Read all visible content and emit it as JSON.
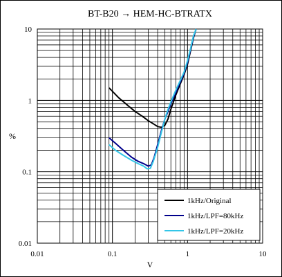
{
  "chart_data": {
    "type": "line",
    "title": "BT-B20 → HEM-HC-BTRATX",
    "xlabel": "V",
    "ylabel": "%",
    "x_scale": "log",
    "y_scale": "log",
    "xlim": [
      0.01,
      10
    ],
    "ylim": [
      0.01,
      10
    ],
    "x_ticks": [
      "0.01",
      "0.1",
      "1",
      "10"
    ],
    "y_ticks": [
      "10",
      "1",
      "0.1",
      "0.01"
    ],
    "grid": true,
    "legend_position": "bottom-right",
    "series": [
      {
        "name": "1kHz/Original",
        "color": "#000000",
        "points": [
          [
            0.09,
            1.5
          ],
          [
            0.12,
            1.1
          ],
          [
            0.16,
            0.85
          ],
          [
            0.2,
            0.7
          ],
          [
            0.25,
            0.6
          ],
          [
            0.3,
            0.52
          ],
          [
            0.35,
            0.47
          ],
          [
            0.4,
            0.43
          ],
          [
            0.45,
            0.42
          ],
          [
            0.5,
            0.45
          ],
          [
            0.55,
            0.55
          ],
          [
            0.6,
            0.75
          ],
          [
            0.7,
            1.2
          ],
          [
            0.8,
            1.7
          ],
          [
            0.9,
            2.3
          ],
          [
            1.0,
            3.2
          ],
          [
            1.1,
            5.0
          ],
          [
            1.2,
            7.5
          ],
          [
            1.3,
            10.0
          ]
        ]
      },
      {
        "name": "1kHz/LPF=80kHz",
        "color": "#00008b",
        "points": [
          [
            0.09,
            0.3
          ],
          [
            0.11,
            0.25
          ],
          [
            0.14,
            0.2
          ],
          [
            0.18,
            0.16
          ],
          [
            0.22,
            0.14
          ],
          [
            0.26,
            0.13
          ],
          [
            0.3,
            0.12
          ],
          [
            0.33,
            0.125
          ],
          [
            0.36,
            0.16
          ],
          [
            0.4,
            0.24
          ],
          [
            0.45,
            0.38
          ],
          [
            0.5,
            0.55
          ],
          [
            0.55,
            0.7
          ],
          [
            0.6,
            0.9
          ],
          [
            0.7,
            1.3
          ],
          [
            0.8,
            1.8
          ],
          [
            0.9,
            2.4
          ],
          [
            1.0,
            3.4
          ],
          [
            1.1,
            5.2
          ],
          [
            1.2,
            7.7
          ],
          [
            1.3,
            10.0
          ]
        ]
      },
      {
        "name": "1kHz/LPF=20kHz",
        "color": "#33c6e8",
        "points": [
          [
            0.09,
            0.24
          ],
          [
            0.11,
            0.2
          ],
          [
            0.14,
            0.17
          ],
          [
            0.18,
            0.145
          ],
          [
            0.22,
            0.13
          ],
          [
            0.26,
            0.12
          ],
          [
            0.29,
            0.11
          ],
          [
            0.32,
            0.112
          ],
          [
            0.35,
            0.14
          ],
          [
            0.4,
            0.22
          ],
          [
            0.45,
            0.36
          ],
          [
            0.5,
            0.55
          ],
          [
            0.55,
            0.75
          ],
          [
            0.6,
            0.95
          ],
          [
            0.7,
            1.4
          ],
          [
            0.8,
            1.9
          ],
          [
            0.9,
            2.5
          ],
          [
            1.0,
            3.6
          ],
          [
            1.1,
            5.4
          ],
          [
            1.2,
            8.0
          ],
          [
            1.3,
            10.0
          ]
        ]
      }
    ]
  }
}
